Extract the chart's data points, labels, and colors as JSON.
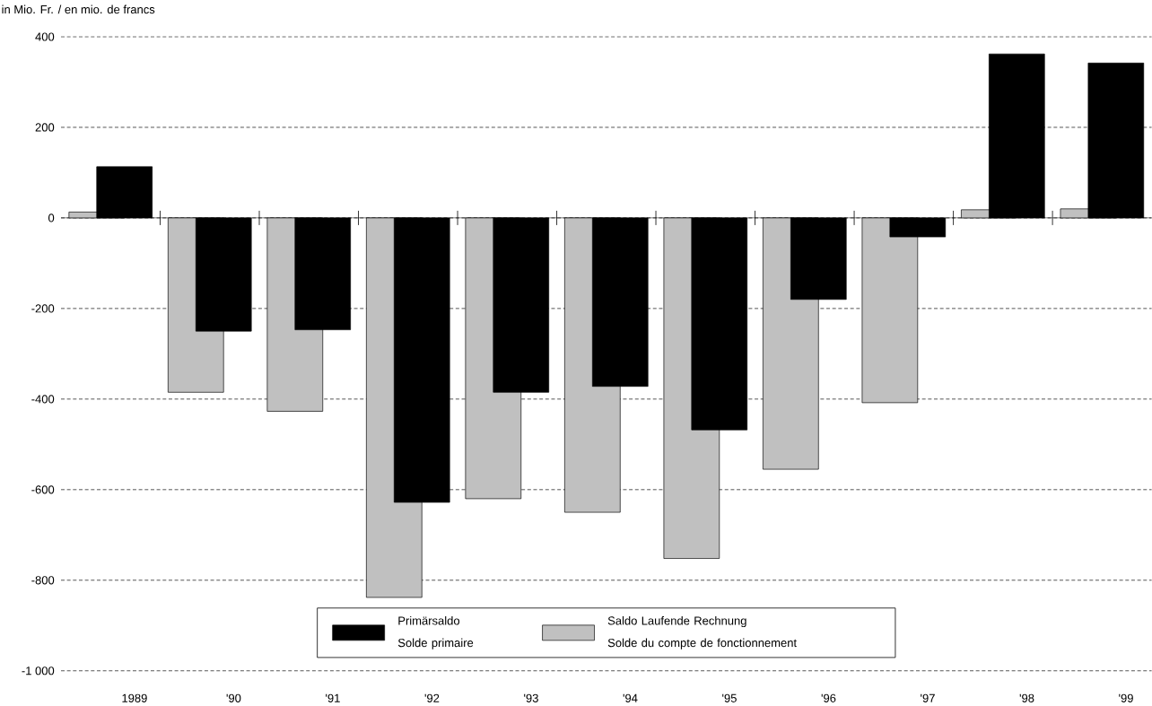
{
  "chart_data": {
    "type": "bar",
    "ylabel": "in Mio. Fr. / en mio. de francs",
    "categories": [
      "1989",
      "'90",
      "'91",
      "'92",
      "'93",
      "'94",
      "'95",
      "'96",
      "'97",
      "'98",
      "'99"
    ],
    "series": [
      {
        "name": "Primärsaldo Solde primaire",
        "color": "#000000",
        "values": [
          113,
          -250,
          -247,
          -628,
          -385,
          -372,
          -468,
          -180,
          -42,
          362,
          342
        ]
      },
      {
        "name": "Saldo Laufende Rechnung Solde du compte de fonctionnement",
        "color": "#c0c0c0",
        "values": [
          13,
          -385,
          -427,
          -838,
          -620,
          -650,
          -752,
          -555,
          -408,
          18,
          20
        ]
      }
    ],
    "ylim": [
      -1000,
      400
    ],
    "yticks": [
      {
        "value": -1000,
        "label": "-1 000"
      },
      -800,
      -600,
      -400,
      -200,
      0,
      200,
      400
    ],
    "grid": "y",
    "legend": "bottom"
  }
}
